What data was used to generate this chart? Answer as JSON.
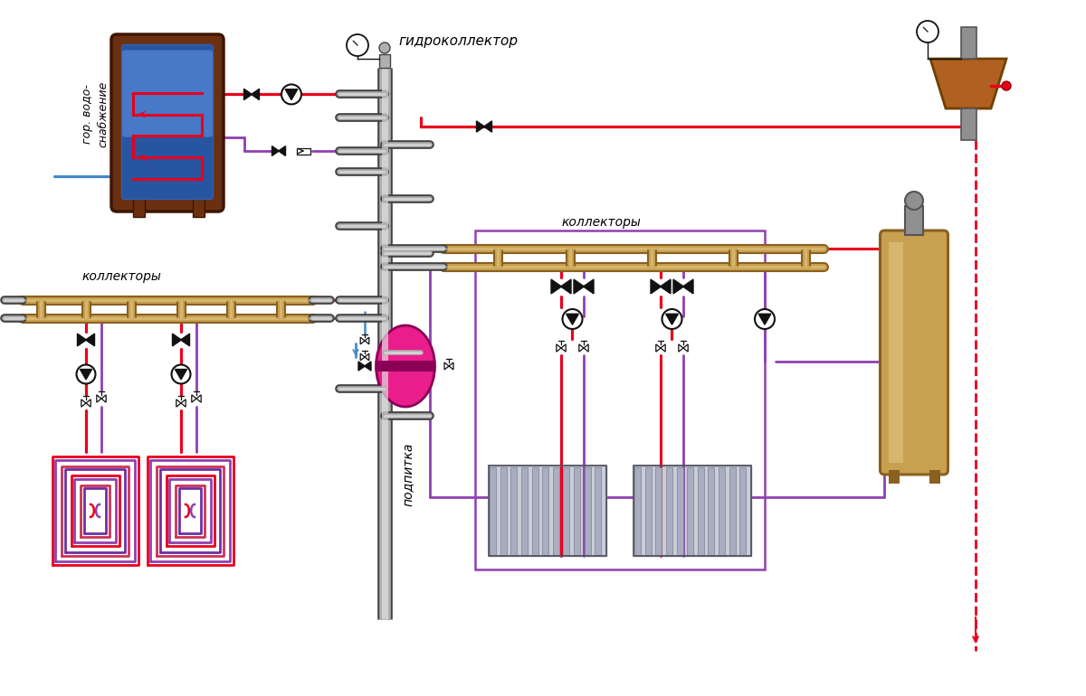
{
  "bg": "#ffffff",
  "red": "#e8001c",
  "blue": "#4488cc",
  "light_blue": "#88bbee",
  "purple": "#9040b0",
  "pink": "#e91e8c",
  "pink_dark": "#8b0057",
  "gold": "#c8a050",
  "gold_dark": "#8a6020",
  "gold_light": "#e8d090",
  "black": "#111111",
  "brown": "#6b3010",
  "brown_dark": "#3d1500",
  "boiler_blue_dark": "#2855a0",
  "boiler_blue_mid": "#3060b0",
  "boiler_blue_light": "#4878c8",
  "gray_dark": "#444444",
  "gray_mid": "#b0b0b0",
  "gray_light": "#e0e0e0",
  "tank_gray": "#909090",
  "tank_gray_dark": "#555555",
  "deaer_brown": "#b06020",
  "deaer_brown_dark": "#704000",
  "label_hydro": "гидроколлектор",
  "label_collectors": "коллекторы",
  "label_hot_water": "гор. водо-\nснабжение",
  "label_makeup": "подпитка"
}
